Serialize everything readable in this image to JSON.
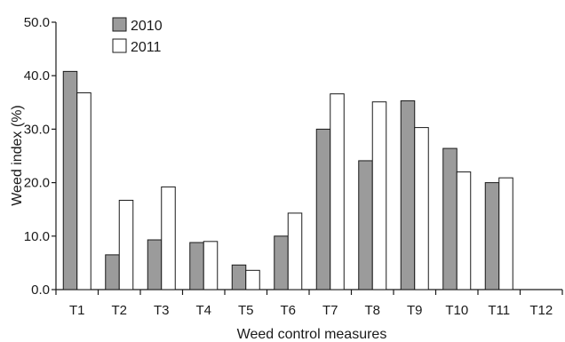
{
  "chart_data": {
    "type": "bar",
    "xlabel": "Weed control measures",
    "ylabel": "Weed index (%)",
    "ylim": [
      0,
      50
    ],
    "yticks": [
      "0.0",
      "10.0",
      "20.0",
      "30.0",
      "40.0",
      "50.0"
    ],
    "categories": [
      "T1",
      "T2",
      "T3",
      "T4",
      "T5",
      "T6",
      "T7",
      "T8",
      "T9",
      "T10",
      "T11",
      "T12"
    ],
    "series": [
      {
        "name": "2010",
        "color": "#9b9b9b",
        "values": [
          40.8,
          6.5,
          9.3,
          8.8,
          4.6,
          10.0,
          30.0,
          24.1,
          35.3,
          26.4,
          20.0,
          0
        ]
      },
      {
        "name": "2011",
        "color": "#ffffff",
        "values": [
          36.8,
          16.7,
          19.2,
          9.0,
          3.6,
          14.3,
          36.6,
          35.1,
          30.3,
          22.0,
          20.9,
          0
        ]
      }
    ],
    "legend_position": "top-left",
    "grid": false
  }
}
